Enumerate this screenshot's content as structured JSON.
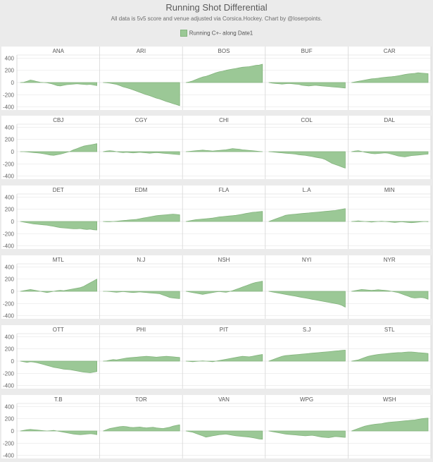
{
  "header": {
    "title": "Running Shot Differential",
    "subtitle": "All data is 5v5 score and venue adjusted via Corsica.Hockey. Chart by @loserpoints.",
    "legend_label": "Running C+- along Date1"
  },
  "colors": {
    "area_fill": "#9bc896",
    "area_stroke": "#83b47d",
    "panel_bg": "#ffffff",
    "page_bg": "#ebebeb",
    "gridline": "#e8e8e8"
  },
  "chart_data": {
    "type": "area",
    "title": "Running Shot Differential",
    "series_name": "Running C+- along Date1",
    "ylim": [
      -450,
      450
    ],
    "y_ticks": [
      {
        "value": 400,
        "label": "400"
      },
      {
        "value": 200,
        "label": "200"
      },
      {
        "value": 0,
        "label": "0"
      },
      {
        "value": -200,
        "label": "-200"
      },
      {
        "value": -400,
        "label": "-400"
      }
    ],
    "rows": [
      [
        {
          "team": "ANA",
          "values": [
            0,
            5,
            20,
            40,
            30,
            15,
            5,
            0,
            -5,
            -15,
            -30,
            -50,
            -55,
            -45,
            -35,
            -30,
            -25,
            -20,
            -25,
            -30,
            -35,
            -30,
            -40,
            -50
          ]
        },
        {
          "team": "ARI",
          "values": [
            0,
            -5,
            -10,
            -20,
            -30,
            -50,
            -70,
            -85,
            -100,
            -120,
            -140,
            -160,
            -180,
            -200,
            -215,
            -235,
            -255,
            -270,
            -290,
            -310,
            -325,
            -345,
            -360,
            -380
          ]
        },
        {
          "team": "BOS",
          "values": [
            0,
            10,
            25,
            50,
            70,
            90,
            100,
            120,
            140,
            160,
            175,
            185,
            200,
            210,
            220,
            230,
            240,
            250,
            255,
            260,
            270,
            280,
            285,
            300
          ]
        },
        {
          "team": "BUF",
          "values": [
            0,
            -10,
            -15,
            -20,
            -25,
            -20,
            -15,
            -20,
            -25,
            -30,
            -45,
            -50,
            -55,
            -50,
            -45,
            -50,
            -55,
            -60,
            -65,
            -70,
            -75,
            -80,
            -85,
            -90
          ]
        },
        {
          "team": "CAR",
          "values": [
            0,
            10,
            20,
            30,
            40,
            50,
            60,
            65,
            70,
            80,
            85,
            90,
            95,
            100,
            110,
            120,
            130,
            140,
            145,
            150,
            160,
            155,
            150,
            145
          ]
        }
      ],
      [
        {
          "team": "CBJ",
          "values": [
            0,
            0,
            -5,
            -10,
            -15,
            -20,
            -25,
            -35,
            -45,
            -55,
            -60,
            -50,
            -40,
            -25,
            -10,
            5,
            30,
            50,
            70,
            90,
            100,
            110,
            120,
            130
          ]
        },
        {
          "team": "CGY",
          "values": [
            0,
            10,
            15,
            10,
            0,
            -10,
            -15,
            -10,
            -15,
            -20,
            -15,
            -10,
            -15,
            -20,
            -25,
            -20,
            -15,
            -20,
            -25,
            -30,
            -35,
            -40,
            -45,
            -50
          ]
        },
        {
          "team": "CHI",
          "values": [
            0,
            5,
            10,
            15,
            20,
            25,
            20,
            15,
            10,
            15,
            20,
            25,
            30,
            40,
            50,
            45,
            40,
            30,
            25,
            20,
            15,
            10,
            5,
            0
          ]
        },
        {
          "team": "COL",
          "values": [
            0,
            -5,
            -10,
            -15,
            -20,
            -25,
            -30,
            -35,
            -40,
            -50,
            -55,
            -60,
            -70,
            -80,
            -90,
            -100,
            -110,
            -130,
            -160,
            -190,
            -210,
            -230,
            -250,
            -270
          ]
        },
        {
          "team": "DAL",
          "values": [
            0,
            10,
            15,
            5,
            -10,
            -20,
            -30,
            -35,
            -30,
            -25,
            -20,
            -25,
            -40,
            -55,
            -70,
            -80,
            -85,
            -75,
            -65,
            -60,
            -55,
            -50,
            -45,
            -40
          ]
        }
      ],
      [
        {
          "team": "DET",
          "values": [
            0,
            -10,
            -20,
            -30,
            -40,
            -45,
            -50,
            -55,
            -60,
            -70,
            -80,
            -90,
            -100,
            -105,
            -110,
            -115,
            -120,
            -120,
            -115,
            -125,
            -130,
            -125,
            -135,
            -140
          ]
        },
        {
          "team": "EDM",
          "values": [
            0,
            -5,
            -5,
            0,
            5,
            10,
            15,
            20,
            25,
            30,
            35,
            45,
            55,
            65,
            75,
            85,
            95,
            100,
            105,
            110,
            115,
            120,
            115,
            110
          ]
        },
        {
          "team": "FLA",
          "values": [
            0,
            10,
            20,
            30,
            35,
            40,
            45,
            50,
            55,
            65,
            75,
            80,
            85,
            90,
            95,
            100,
            110,
            120,
            130,
            140,
            150,
            155,
            160,
            165
          ]
        },
        {
          "team": "L.A",
          "values": [
            0,
            20,
            40,
            60,
            80,
            100,
            110,
            115,
            120,
            125,
            130,
            135,
            140,
            145,
            150,
            155,
            160,
            165,
            170,
            175,
            180,
            190,
            200,
            210
          ]
        },
        {
          "team": "MIN",
          "values": [
            0,
            5,
            10,
            5,
            0,
            -5,
            -10,
            -5,
            0,
            5,
            0,
            -5,
            -10,
            -15,
            -10,
            -5,
            -10,
            -15,
            -20,
            -15,
            -10,
            -5,
            0,
            -5
          ]
        }
      ],
      [
        {
          "team": "MTL",
          "values": [
            0,
            10,
            20,
            30,
            20,
            10,
            0,
            -10,
            -20,
            -10,
            0,
            10,
            15,
            10,
            20,
            30,
            40,
            50,
            60,
            80,
            110,
            140,
            170,
            200
          ]
        },
        {
          "team": "N.J",
          "values": [
            0,
            0,
            -5,
            -10,
            -15,
            -10,
            -5,
            -10,
            -15,
            -20,
            -15,
            -10,
            -15,
            -20,
            -25,
            -30,
            -35,
            -40,
            -60,
            -80,
            -100,
            -110,
            -115,
            -120
          ]
        },
        {
          "team": "NSH",
          "values": [
            0,
            -10,
            -20,
            -30,
            -40,
            -50,
            -40,
            -30,
            -20,
            -10,
            -5,
            -10,
            -15,
            -5,
            10,
            30,
            50,
            70,
            90,
            110,
            130,
            145,
            155,
            165
          ]
        },
        {
          "team": "NYI",
          "values": [
            0,
            -10,
            -20,
            -30,
            -40,
            -50,
            -60,
            -70,
            -80,
            -90,
            -100,
            -110,
            -120,
            -130,
            -140,
            -150,
            -160,
            -170,
            -180,
            -190,
            -200,
            -210,
            -230,
            -260
          ]
        },
        {
          "team": "NYR",
          "values": [
            0,
            10,
            20,
            30,
            25,
            20,
            15,
            20,
            25,
            20,
            15,
            10,
            0,
            -10,
            -20,
            -40,
            -60,
            -80,
            -100,
            -110,
            -105,
            -100,
            -110,
            -130
          ]
        }
      ],
      [
        {
          "team": "OTT",
          "values": [
            0,
            -10,
            -20,
            -10,
            -15,
            -25,
            -40,
            -55,
            -70,
            -85,
            -100,
            -110,
            -120,
            -130,
            -135,
            -140,
            -150,
            -160,
            -170,
            -180,
            -185,
            -190,
            -180,
            -170
          ]
        },
        {
          "team": "PHI",
          "values": [
            0,
            5,
            15,
            25,
            20,
            30,
            40,
            50,
            55,
            60,
            65,
            70,
            75,
            80,
            75,
            70,
            65,
            70,
            75,
            80,
            75,
            70,
            65,
            60
          ]
        },
        {
          "team": "PIT",
          "values": [
            0,
            -5,
            -10,
            -5,
            0,
            5,
            0,
            -5,
            -10,
            0,
            10,
            20,
            30,
            40,
            50,
            60,
            70,
            80,
            75,
            70,
            80,
            90,
            100,
            110
          ]
        },
        {
          "team": "S.J",
          "values": [
            0,
            20,
            40,
            60,
            80,
            90,
            95,
            100,
            105,
            110,
            115,
            120,
            125,
            130,
            135,
            140,
            145,
            150,
            155,
            160,
            165,
            170,
            175,
            180
          ]
        },
        {
          "team": "STL",
          "values": [
            0,
            10,
            20,
            40,
            60,
            80,
            90,
            100,
            110,
            115,
            120,
            125,
            130,
            135,
            140,
            140,
            145,
            150,
            150,
            145,
            140,
            135,
            130,
            125
          ]
        }
      ],
      [
        {
          "team": "T.B",
          "values": [
            0,
            10,
            20,
            25,
            20,
            15,
            10,
            5,
            0,
            5,
            10,
            0,
            -10,
            -20,
            -30,
            -40,
            -50,
            -55,
            -60,
            -55,
            -50,
            -45,
            -50,
            -60
          ]
        },
        {
          "team": "TOR",
          "values": [
            0,
            20,
            40,
            50,
            60,
            70,
            75,
            70,
            60,
            55,
            60,
            65,
            55,
            50,
            55,
            60,
            50,
            45,
            40,
            50,
            60,
            80,
            90,
            100
          ]
        },
        {
          "team": "VAN",
          "values": [
            0,
            -10,
            -20,
            -40,
            -60,
            -80,
            -100,
            -90,
            -80,
            -70,
            -60,
            -55,
            -50,
            -60,
            -70,
            -80,
            -85,
            -90,
            -95,
            -100,
            -110,
            -120,
            -130,
            -135
          ]
        },
        {
          "team": "WPG",
          "values": [
            0,
            -10,
            -20,
            -30,
            -40,
            -50,
            -55,
            -60,
            -65,
            -70,
            -75,
            -80,
            -75,
            -70,
            -80,
            -90,
            -100,
            -105,
            -110,
            -100,
            -90,
            -95,
            -100,
            -105
          ]
        },
        {
          "team": "WSH",
          "values": [
            0,
            20,
            40,
            60,
            80,
            90,
            100,
            110,
            115,
            120,
            130,
            140,
            145,
            150,
            155,
            160,
            165,
            170,
            175,
            180,
            190,
            200,
            205,
            210
          ]
        }
      ]
    ]
  }
}
